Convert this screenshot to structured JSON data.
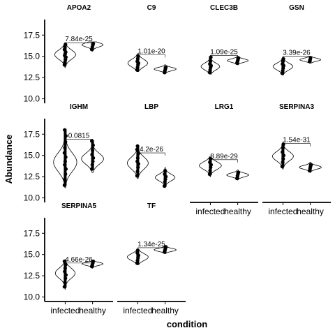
{
  "chart_data": {
    "type": "violin",
    "xlabel": "condition",
    "ylabel": "Abundance",
    "categories": [
      "infected",
      "healthy"
    ],
    "ylim": [
      9.8,
      19.0
    ],
    "yticks": [
      10.0,
      12.5,
      15.0,
      17.5
    ],
    "ytick_labels": [
      "10.0",
      "12.5",
      "15.0",
      "17.5"
    ],
    "panels": [
      {
        "title": "APOA2",
        "pvalue": "7.84e-25",
        "bracket_y": 16.6,
        "infected": {
          "min": 13.7,
          "max": 16.6,
          "mode": 15.2,
          "spread": 0.55,
          "width": 0.9,
          "points": [
            14.0,
            14.3,
            14.6,
            14.9,
            15.1,
            15.3,
            15.5,
            15.8,
            16.1,
            16.4
          ]
        },
        "healthy": {
          "min": 15.6,
          "max": 16.7,
          "mode": 16.35,
          "spread": 0.25,
          "width": 0.9,
          "points": [
            15.8,
            16.1,
            16.3,
            16.5
          ]
        }
      },
      {
        "title": "C9",
        "pvalue": "1.01e-20",
        "bracket_y": 15.2,
        "infected": {
          "min": 13.2,
          "max": 15.3,
          "mode": 14.2,
          "spread": 0.45,
          "width": 0.85,
          "points": [
            13.4,
            13.7,
            14.0,
            14.2,
            14.4,
            14.7,
            15.0
          ]
        },
        "healthy": {
          "min": 12.9,
          "max": 14.0,
          "mode": 13.5,
          "spread": 0.2,
          "width": 0.95,
          "points": [
            13.1,
            13.3,
            13.5,
            13.7
          ]
        }
      },
      {
        "title": "CLEC3B",
        "pvalue": "1.09e-25",
        "bracket_y": 15.1,
        "infected": {
          "min": 12.9,
          "max": 15.0,
          "mode": 13.8,
          "spread": 0.4,
          "width": 0.8,
          "points": [
            13.1,
            13.4,
            13.7,
            13.9,
            14.1,
            14.4,
            14.9
          ]
        },
        "healthy": {
          "min": 14.0,
          "max": 15.0,
          "mode": 14.5,
          "spread": 0.2,
          "width": 0.9,
          "points": [
            14.2,
            14.4,
            14.6,
            14.8
          ]
        }
      },
      {
        "title": "GSN",
        "pvalue": "3.39e-26",
        "bracket_y": 15.0,
        "infected": {
          "min": 12.8,
          "max": 14.9,
          "mode": 13.8,
          "spread": 0.4,
          "width": 0.85,
          "points": [
            13.0,
            13.3,
            13.6,
            13.9,
            14.1,
            14.4,
            14.7
          ]
        },
        "healthy": {
          "min": 14.2,
          "max": 15.0,
          "mode": 14.6,
          "spread": 0.18,
          "width": 0.9,
          "points": [
            14.4,
            14.6,
            14.8
          ]
        }
      },
      {
        "title": "IGHM",
        "pvalue": "0.0815",
        "bracket_y": 16.9,
        "infected": {
          "min": 11.2,
          "max": 18.0,
          "mode": 14.2,
          "spread": 1.1,
          "width": 1.0,
          "points": [
            11.5,
            12.2,
            12.8,
            13.4,
            13.9,
            14.3,
            14.8,
            15.3,
            15.9,
            16.6,
            17.3,
            18.0
          ]
        },
        "healthy": {
          "min": 13.0,
          "max": 16.9,
          "mode": 14.6,
          "spread": 0.65,
          "width": 0.95,
          "points": [
            13.4,
            13.9,
            14.3,
            14.7,
            15.1,
            15.6,
            16.2,
            16.7
          ]
        }
      },
      {
        "title": "LBP",
        "pvalue": "4.2e-26",
        "bracket_y": 15.3,
        "infected": {
          "min": 12.3,
          "max": 16.3,
          "mode": 14.1,
          "spread": 0.7,
          "width": 0.9,
          "points": [
            12.6,
            13.1,
            13.6,
            14.0,
            14.3,
            14.7,
            15.2,
            15.7,
            16.1
          ]
        },
        "healthy": {
          "min": 11.2,
          "max": 13.6,
          "mode": 12.4,
          "spread": 0.4,
          "width": 0.85,
          "points": [
            11.4,
            11.9,
            12.2,
            12.5,
            12.8,
            13.2
          ]
        }
      },
      {
        "title": "LRG1",
        "pvalue": "8.89e-29",
        "bracket_y": 14.5,
        "infected": {
          "min": 12.5,
          "max": 14.9,
          "mode": 13.8,
          "spread": 0.45,
          "width": 0.95,
          "points": [
            12.8,
            13.2,
            13.6,
            13.9,
            14.2,
            14.6
          ]
        },
        "healthy": {
          "min": 12.1,
          "max": 13.3,
          "mode": 12.7,
          "spread": 0.22,
          "width": 0.95,
          "points": [
            12.3,
            12.6,
            12.8,
            13.0
          ]
        }
      },
      {
        "title": "SERPINA3",
        "pvalue": "1.54e-31",
        "bracket_y": 16.4,
        "infected": {
          "min": 13.4,
          "max": 16.6,
          "mode": 14.9,
          "spread": 0.55,
          "width": 0.9,
          "points": [
            13.7,
            14.2,
            14.6,
            15.0,
            15.4,
            15.9,
            16.3
          ]
        },
        "healthy": {
          "min": 13.0,
          "max": 14.2,
          "mode": 13.6,
          "spread": 0.22,
          "width": 0.95,
          "points": [
            13.2,
            13.5,
            13.7,
            13.9
          ]
        }
      },
      {
        "title": "SERPINA5",
        "pvalue": "4.66e-26",
        "bracket_y": 14.0,
        "infected": {
          "min": 10.9,
          "max": 14.4,
          "mode": 12.8,
          "spread": 0.6,
          "width": 0.85,
          "points": [
            11.2,
            11.7,
            12.2,
            12.6,
            13.0,
            13.4,
            13.8,
            14.2
          ]
        },
        "healthy": {
          "min": 13.4,
          "max": 14.3,
          "mode": 13.9,
          "spread": 0.18,
          "width": 0.9,
          "points": [
            13.6,
            13.8,
            14.0,
            14.2
          ]
        }
      },
      {
        "title": "TF",
        "pvalue": "1.34e-25",
        "bracket_y": 15.8,
        "infected": {
          "min": 13.8,
          "max": 15.6,
          "mode": 14.7,
          "spread": 0.4,
          "width": 0.9,
          "points": [
            14.0,
            14.3,
            14.6,
            14.9,
            15.2,
            15.5
          ]
        },
        "healthy": {
          "min": 15.1,
          "max": 16.0,
          "mode": 15.55,
          "spread": 0.18,
          "width": 0.95,
          "points": [
            15.3,
            15.5,
            15.7,
            15.9
          ]
        }
      }
    ]
  }
}
